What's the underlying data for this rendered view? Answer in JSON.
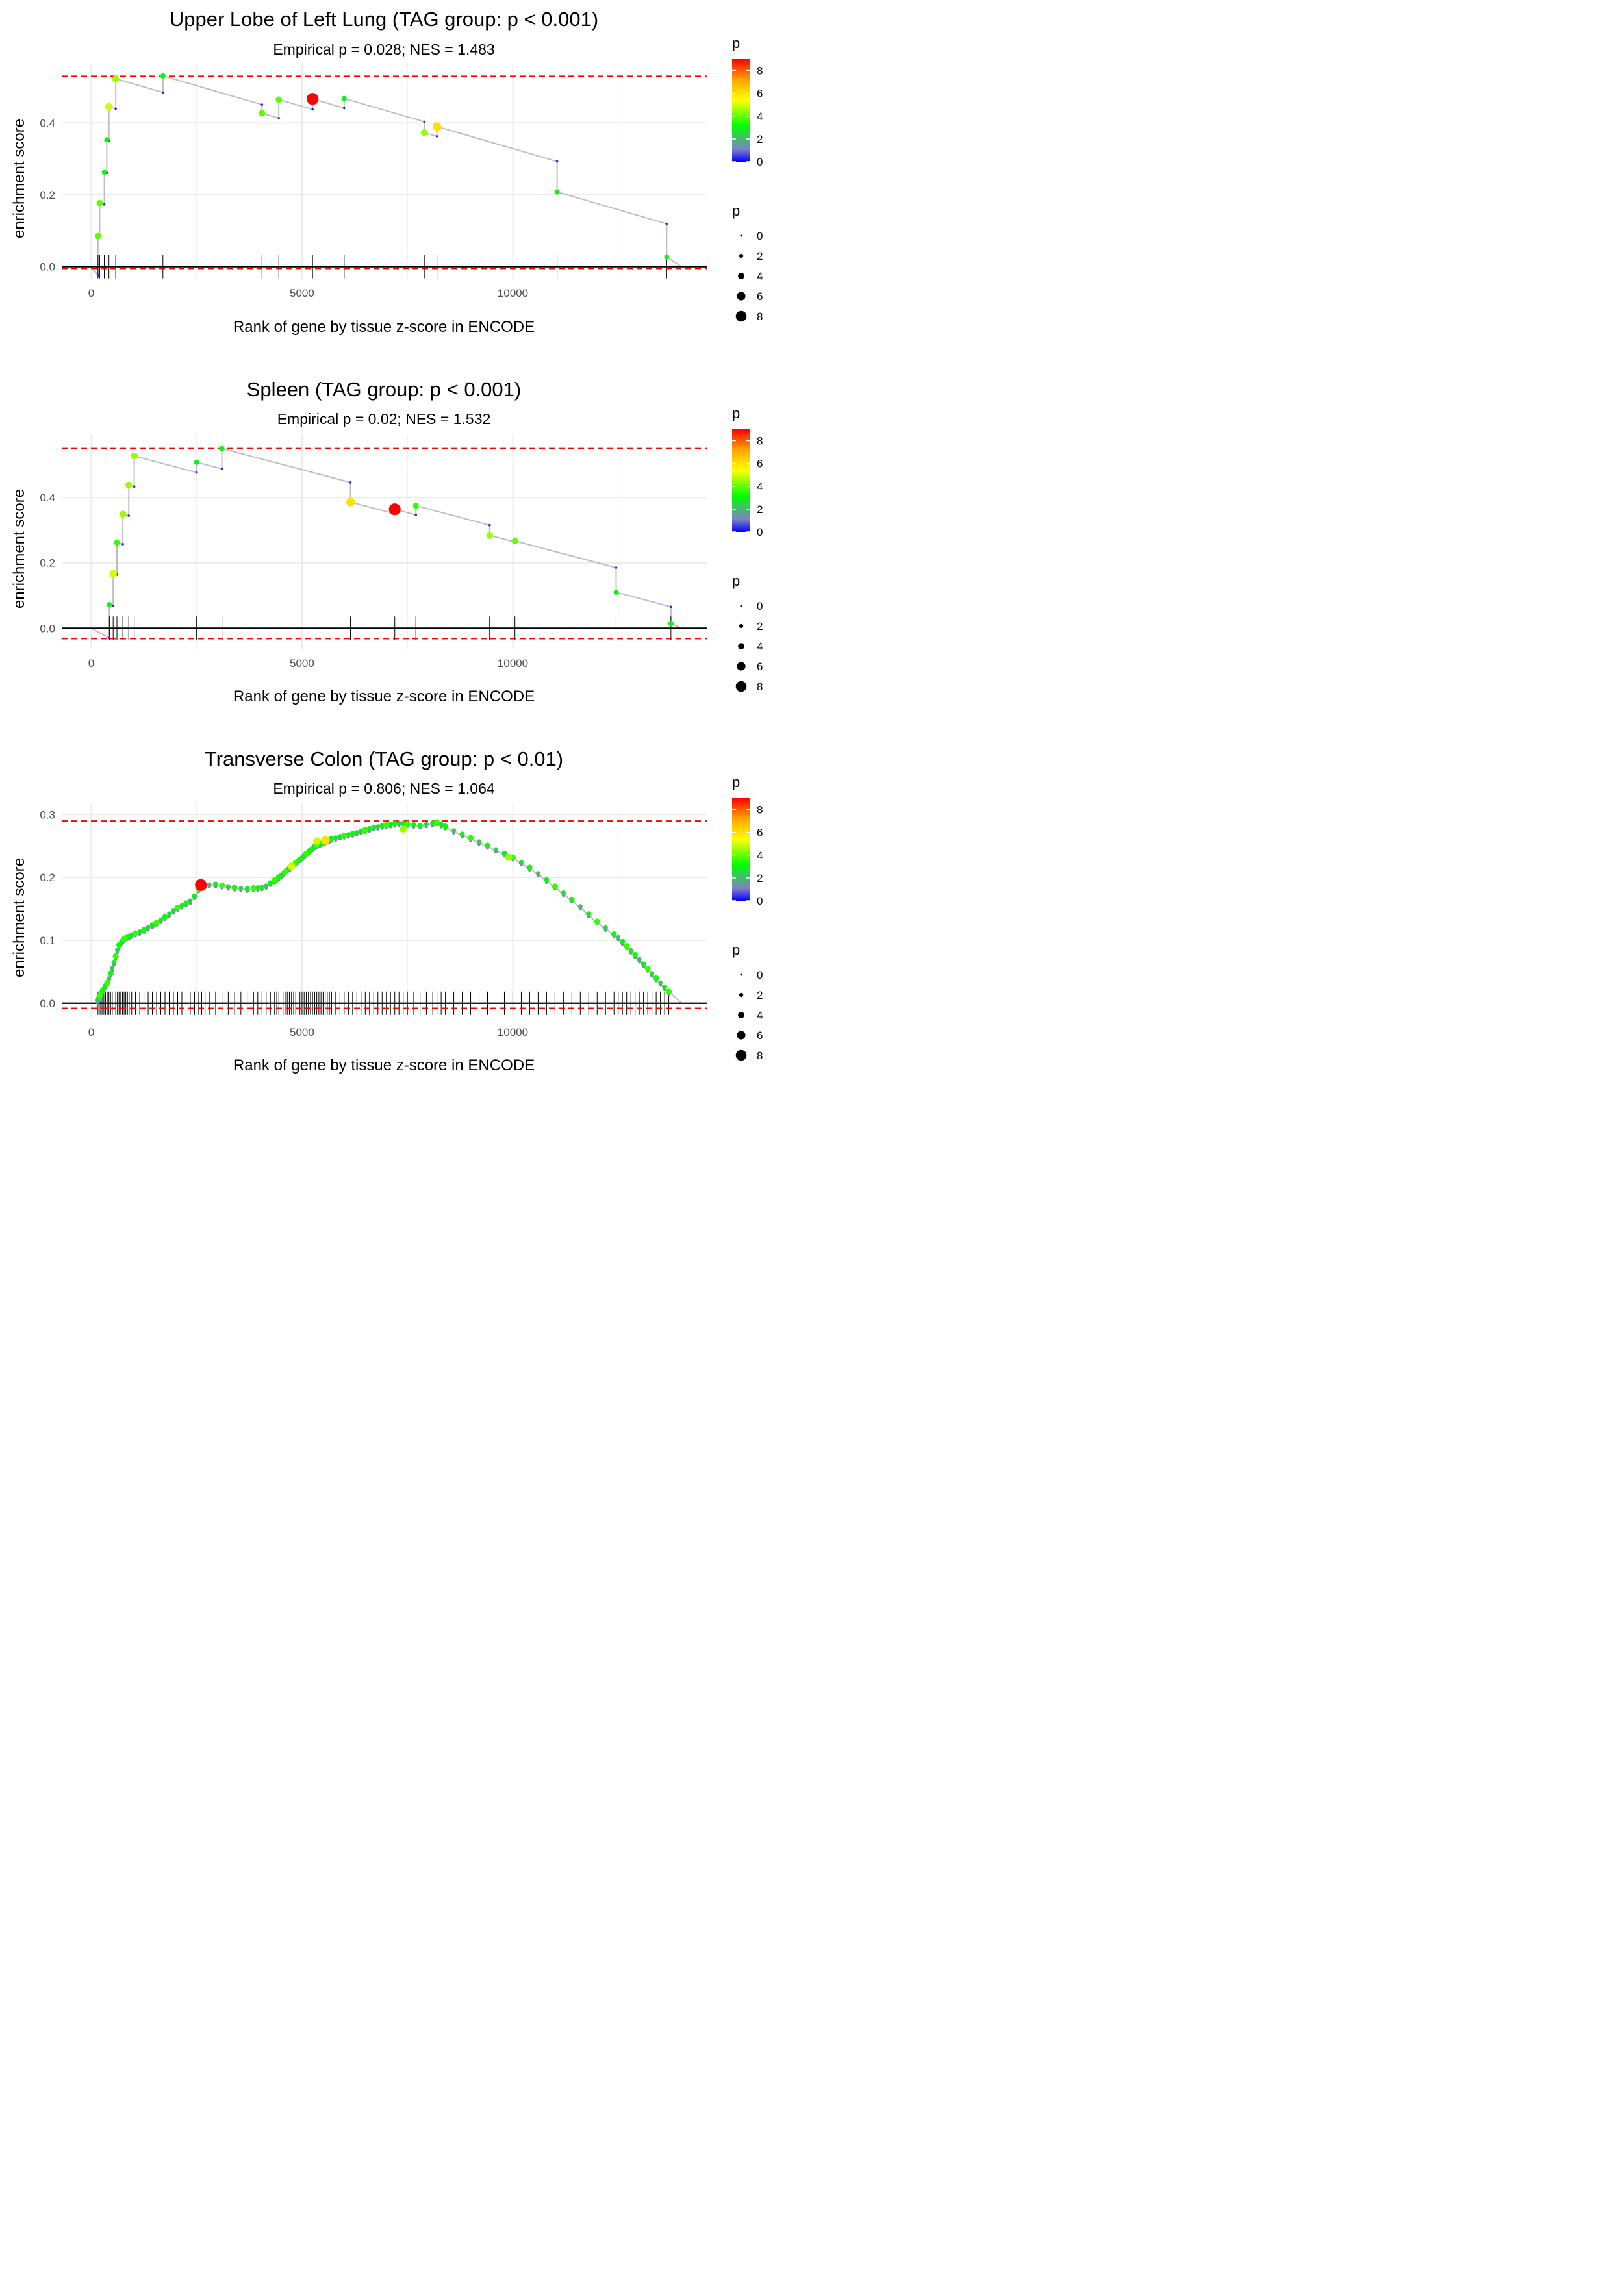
{
  "colors": {
    "grid": "#ebebeb",
    "curve": "#bdbdbd",
    "threshold": "#ff0000",
    "rug": "#000000",
    "tick_text": "#4d4d4d",
    "gradient": [
      "#0000ff",
      "#8080c8",
      "#00ff00",
      "#ffff00",
      "#ffa500",
      "#ff0000"
    ]
  },
  "chart_data": [
    {
      "type": "line",
      "title": "Upper Lobe of Left Lung (TAG group: p < 0.001)",
      "subtitle": "Empirical p = 0.028; NES = 1.483",
      "xlabel": "Rank of gene by tissue z-score in ENCODE",
      "ylabel": "enrichment score",
      "xlim": [
        -700,
        14600
      ],
      "ylim": [
        -0.035,
        0.565
      ],
      "xticks": [
        0,
        5000,
        10000
      ],
      "xtick_labels": [
        "0",
        "5000",
        "10000"
      ],
      "yticks": [
        0.0,
        0.2,
        0.4
      ],
      "ytick_labels": [
        "0.0",
        "0.2",
        "0.4"
      ],
      "threshold_lines": [
        0.53,
        -0.005
      ],
      "n_genes": 14000,
      "hits": [
        {
          "x": 160,
          "es": 0.085,
          "p": 4
        },
        {
          "x": 200,
          "es": 0.177,
          "p": 4
        },
        {
          "x": 310,
          "es": 0.263,
          "p": 3
        },
        {
          "x": 370,
          "es": 0.353,
          "p": 3
        },
        {
          "x": 420,
          "es": 0.445,
          "p": 5
        },
        {
          "x": 580,
          "es": 0.523,
          "p": 4.5
        },
        {
          "x": 1700,
          "es": 0.531,
          "p": 3
        },
        {
          "x": 4050,
          "es": 0.427,
          "p": 4
        },
        {
          "x": 4450,
          "es": 0.465,
          "p": 4
        },
        {
          "x": 5250,
          "es": 0.467,
          "p": 9
        },
        {
          "x": 6000,
          "es": 0.468,
          "p": 3
        },
        {
          "x": 7900,
          "es": 0.373,
          "p": 4.5
        },
        {
          "x": 8200,
          "es": 0.39,
          "p": 6
        },
        {
          "x": 11050,
          "es": 0.208,
          "p": 3
        },
        {
          "x": 13650,
          "es": 0.027,
          "p": 3
        }
      ],
      "legend": {
        "color_title": "p",
        "size_title": "p",
        "color_ticks": [
          "0",
          "2",
          "4",
          "6",
          "8"
        ],
        "size_ticks": [
          "0",
          "2",
          "4",
          "6",
          "8"
        ],
        "p_max": 9
      }
    },
    {
      "type": "line",
      "title": "Spleen (TAG group: p < 0.001)",
      "subtitle": "Empirical p = 0.02; NES = 1.532",
      "xlabel": "Rank of gene by tissue z-score in ENCODE",
      "ylabel": "enrichment score",
      "xlim": [
        -700,
        14600
      ],
      "ylim": [
        -0.065,
        0.595
      ],
      "xticks": [
        0,
        5000,
        10000
      ],
      "xtick_labels": [
        "0",
        "5000",
        "10000"
      ],
      "yticks": [
        0.0,
        0.2,
        0.4
      ],
      "ytick_labels": [
        "0.0",
        "0.2",
        "0.4"
      ],
      "threshold_lines": [
        0.55,
        -0.032
      ],
      "n_genes": 14000,
      "hits": [
        {
          "x": 430,
          "es": 0.072,
          "p": 3
        },
        {
          "x": 520,
          "es": 0.167,
          "p": 5
        },
        {
          "x": 610,
          "es": 0.262,
          "p": 3.5
        },
        {
          "x": 750,
          "es": 0.349,
          "p": 4.5
        },
        {
          "x": 890,
          "es": 0.438,
          "p": 4.5
        },
        {
          "x": 1020,
          "es": 0.527,
          "p": 4.5
        },
        {
          "x": 2500,
          "es": 0.508,
          "p": 3
        },
        {
          "x": 3100,
          "es": 0.55,
          "p": 3
        },
        {
          "x": 6150,
          "es": 0.386,
          "p": 6
        },
        {
          "x": 7200,
          "es": 0.364,
          "p": 9
        },
        {
          "x": 7700,
          "es": 0.375,
          "p": 3.5
        },
        {
          "x": 9450,
          "es": 0.284,
          "p": 4.5
        },
        {
          "x": 10050,
          "es": 0.267,
          "p": 4
        },
        {
          "x": 12450,
          "es": 0.11,
          "p": 3
        },
        {
          "x": 13750,
          "es": 0.015,
          "p": 3
        }
      ],
      "legend": {
        "color_title": "p",
        "size_title": "p",
        "color_ticks": [
          "0",
          "2",
          "4",
          "6",
          "8"
        ],
        "size_ticks": [
          "0",
          "2",
          "4",
          "6",
          "8"
        ],
        "p_max": 9
      }
    },
    {
      "type": "line",
      "title": "Transverse Colon (TAG group: p < 0.01)",
      "subtitle": "Empirical p = 0.806; NES = 1.064",
      "xlabel": "Rank of gene by tissue z-score in ENCODE",
      "ylabel": "enrichment score",
      "xlim": [
        -700,
        14600
      ],
      "ylim": [
        -0.024,
        0.318
      ],
      "xticks": [
        0,
        5000,
        10000
      ],
      "xtick_labels": [
        "0",
        "5000",
        "10000"
      ],
      "yticks": [
        0.0,
        0.1,
        0.2,
        0.3
      ],
      "ytick_labels": [
        "0.0",
        "0.1",
        "0.2",
        "0.3"
      ],
      "threshold_lines": [
        0.29,
        -0.008
      ],
      "n_genes": 14000,
      "curve_anchors": [
        [
          0,
          0.0
        ],
        [
          150,
          0.005
        ],
        [
          250,
          0.018
        ],
        [
          400,
          0.035
        ],
        [
          520,
          0.06
        ],
        [
          650,
          0.092
        ],
        [
          800,
          0.104
        ],
        [
          1000,
          0.11
        ],
        [
          1200,
          0.115
        ],
        [
          1600,
          0.13
        ],
        [
          2000,
          0.15
        ],
        [
          2400,
          0.165
        ],
        [
          2600,
          0.187
        ],
        [
          2900,
          0.19
        ],
        [
          3300,
          0.185
        ],
        [
          3700,
          0.182
        ],
        [
          4100,
          0.185
        ],
        [
          4400,
          0.198
        ],
        [
          4700,
          0.215
        ],
        [
          5000,
          0.232
        ],
        [
          5300,
          0.25
        ],
        [
          5700,
          0.262
        ],
        [
          6200,
          0.27
        ],
        [
          6700,
          0.28
        ],
        [
          7300,
          0.287
        ],
        [
          7800,
          0.283
        ],
        [
          8200,
          0.288
        ],
        [
          8600,
          0.275
        ],
        [
          9000,
          0.263
        ],
        [
          9500,
          0.248
        ],
        [
          10000,
          0.232
        ],
        [
          10500,
          0.212
        ],
        [
          11000,
          0.186
        ],
        [
          11500,
          0.16
        ],
        [
          12000,
          0.13
        ],
        [
          12500,
          0.105
        ],
        [
          13000,
          0.07
        ],
        [
          13400,
          0.04
        ],
        [
          13750,
          0.015
        ],
        [
          14000,
          0.0
        ]
      ],
      "hit_ranks": [
        150,
        180,
        210,
        240,
        270,
        300,
        340,
        380,
        420,
        460,
        500,
        540,
        580,
        620,
        660,
        700,
        740,
        780,
        820,
        860,
        900,
        960,
        1050,
        1150,
        1250,
        1350,
        1450,
        1550,
        1650,
        1750,
        1850,
        1950,
        2050,
        2150,
        2250,
        2350,
        2450,
        2550,
        2620,
        2700,
        2800,
        2950,
        3100,
        3250,
        3400,
        3550,
        3700,
        3850,
        3950,
        4050,
        4150,
        4250,
        4350,
        4400,
        4450,
        4500,
        4550,
        4600,
        4650,
        4700,
        4750,
        4800,
        4850,
        4900,
        4950,
        5000,
        5050,
        5100,
        5150,
        5200,
        5250,
        5300,
        5350,
        5400,
        5450,
        5500,
        5550,
        5600,
        5650,
        5700,
        5800,
        5900,
        6000,
        6100,
        6200,
        6300,
        6400,
        6500,
        6600,
        6700,
        6800,
        6900,
        7000,
        7100,
        7200,
        7300,
        7400,
        7500,
        7650,
        7800,
        7950,
        8100,
        8200,
        8300,
        8400,
        8600,
        8800,
        9000,
        9200,
        9400,
        9600,
        9800,
        10000,
        10200,
        10400,
        10600,
        10800,
        11000,
        11200,
        11400,
        11600,
        11800,
        12000,
        12200,
        12400,
        12500,
        12600,
        12700,
        12800,
        12900,
        13000,
        13100,
        13200,
        13300,
        13400,
        13500,
        13600,
        13700
      ],
      "highlight_hits": [
        {
          "x": 2600,
          "es": 0.188,
          "p": 9
        },
        {
          "x": 5550,
          "es": 0.259,
          "p": 6
        },
        {
          "x": 5350,
          "es": 0.258,
          "p": 5
        },
        {
          "x": 4750,
          "es": 0.218,
          "p": 5
        },
        {
          "x": 7400,
          "es": 0.277,
          "p": 4.5
        },
        {
          "x": 9900,
          "es": 0.232,
          "p": 4.5
        }
      ],
      "legend": {
        "color_title": "p",
        "size_title": "p",
        "color_ticks": [
          "0",
          "2",
          "4",
          "6",
          "8"
        ],
        "size_ticks": [
          "0",
          "2",
          "4",
          "6",
          "8"
        ],
        "p_max": 9
      }
    }
  ]
}
